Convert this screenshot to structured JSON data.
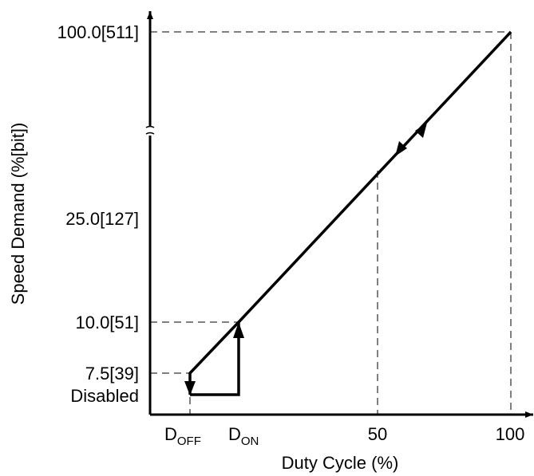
{
  "chart_data": {
    "type": "line",
    "xlabel": "Duty Cycle (%)",
    "ylabel": "Speed Demand (%[bit])",
    "x_ticks": [
      {
        "key": "doff",
        "label_main": "D",
        "label_sub": "OFF"
      },
      {
        "key": "don",
        "label_main": "D",
        "label_sub": "ON"
      },
      {
        "key": "50",
        "label": "50"
      },
      {
        "key": "100",
        "label": "100"
      }
    ],
    "y_ticks": [
      {
        "key": "disabled",
        "label": "Disabled"
      },
      {
        "key": "7.5",
        "label": "7.5[39]"
      },
      {
        "key": "10",
        "label": "10.0[51]"
      },
      {
        "key": "25",
        "label": "25.0[127]"
      },
      {
        "key": "100",
        "label": "100.0[511]"
      }
    ],
    "series": [
      {
        "values": [
          {
            "x": "D_OFF",
            "y": "Disabled"
          },
          {
            "x": "D_ON",
            "y": "Disabled"
          },
          {
            "x": "D_ON",
            "y": 10.0
          },
          {
            "x": 100,
            "y": 100.0
          }
        ]
      },
      {
        "values": [
          {
            "x": "D_ON",
            "y": 10.0
          },
          {
            "x": "D_OFF",
            "y": 7.5
          },
          {
            "x": "D_OFF",
            "y": "Disabled"
          }
        ]
      }
    ],
    "y_axis_break": true,
    "grid": false
  }
}
